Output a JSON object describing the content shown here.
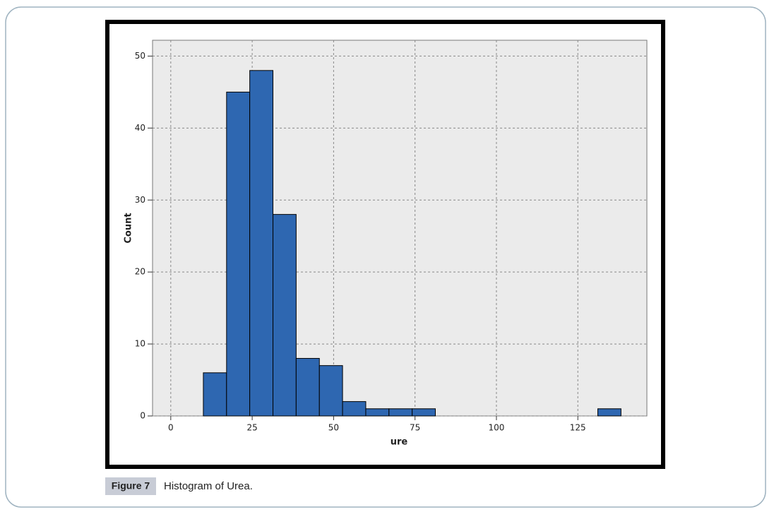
{
  "chart_data": {
    "type": "histogram",
    "x_label": "ure",
    "y_label": "Count",
    "bins": [
      10,
      17.13,
      24.25,
      31.38,
      38.5,
      45.63,
      52.75,
      59.88,
      67,
      74.13,
      81.25,
      88.38,
      95.5,
      102.63,
      109.75,
      116.88,
      124,
      131.13,
      138.25
    ],
    "counts": [
      6,
      45,
      48,
      28,
      8,
      7,
      2,
      1,
      1,
      1,
      0,
      0,
      0,
      0,
      0,
      0,
      0,
      1
    ],
    "color": "#2e67b1",
    "xlim": [
      -5.6,
      146.2
    ],
    "xticks": [
      0,
      25,
      50,
      75,
      100,
      125
    ],
    "ylim": [
      0,
      52.2
    ],
    "yticks": [
      0,
      10,
      20,
      30,
      40,
      50
    ],
    "grid": true
  },
  "caption": {
    "label": "Figure 7",
    "text": "Histogram of Urea."
  }
}
